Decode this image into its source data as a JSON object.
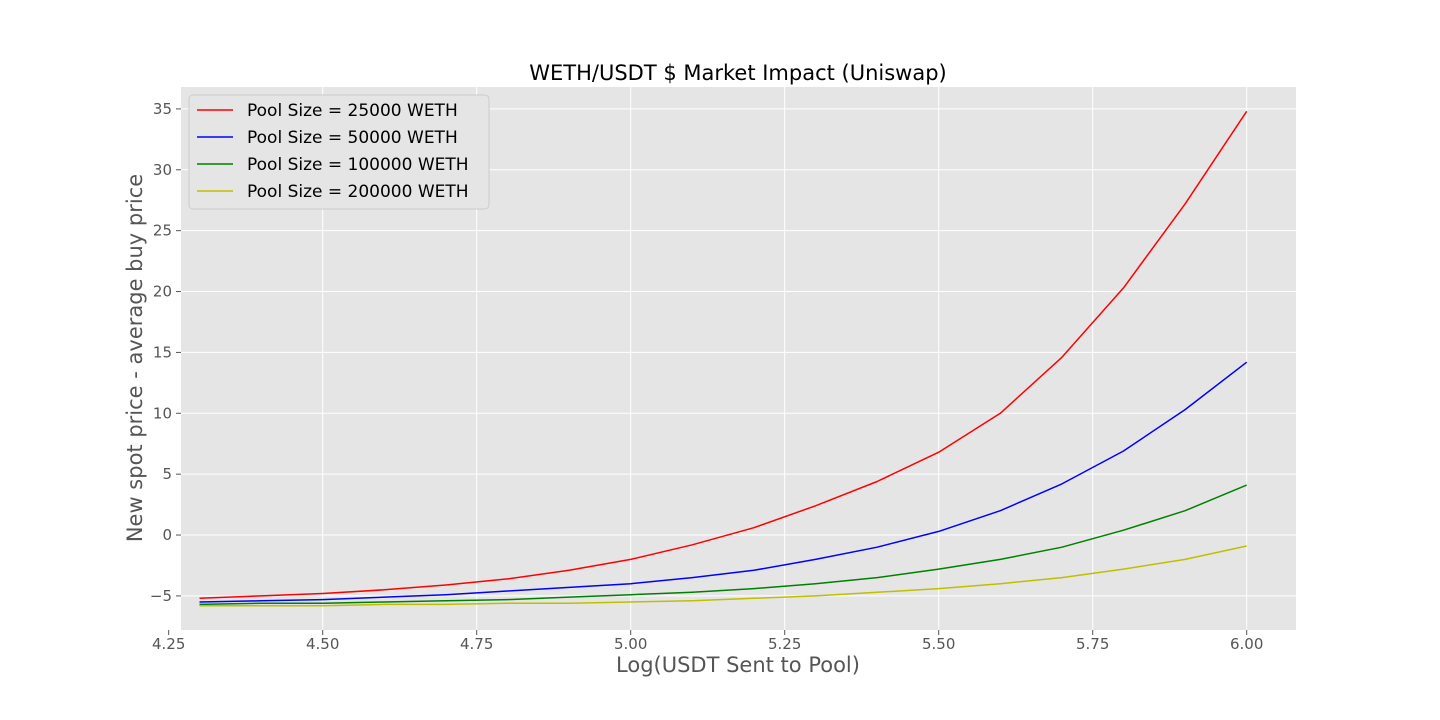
{
  "chart_data": {
    "type": "line",
    "title": "WETH/USDT $ Market Impact (Uniswap)",
    "xlabel": "Log(USDT Sent to Pool)",
    "ylabel": "New spot price - average buy price",
    "xlim": [
      4.27,
      6.08
    ],
    "ylim": [
      -7.8,
      36.8
    ],
    "xticks": [
      4.25,
      4.5,
      4.75,
      5.0,
      5.25,
      5.5,
      5.75,
      6.0
    ],
    "xtick_labels": [
      "4.25",
      "4.50",
      "4.75",
      "5.00",
      "5.25",
      "5.50",
      "5.75",
      "6.00"
    ],
    "yticks": [
      -5,
      0,
      5,
      10,
      15,
      20,
      25,
      30,
      35
    ],
    "ytick_labels": [
      "−5",
      "0",
      "5",
      "10",
      "15",
      "20",
      "25",
      "30",
      "35"
    ],
    "grid": true,
    "legend_position": "top-left",
    "x": [
      4.3,
      4.4,
      4.5,
      4.6,
      4.7,
      4.8,
      4.9,
      5.0,
      5.1,
      5.2,
      5.3,
      5.4,
      5.5,
      5.6,
      5.7,
      5.8,
      5.9,
      6.0
    ],
    "series": [
      {
        "name": "Pool Size = 25000 WETH",
        "color": "#ff0000",
        "values": [
          -5.2,
          -5.0,
          -4.8,
          -4.5,
          -4.1,
          -3.6,
          -2.9,
          -2.0,
          -0.8,
          0.6,
          2.4,
          4.4,
          6.8,
          10.0,
          14.6,
          20.3,
          27.2,
          34.8
        ]
      },
      {
        "name": "Pool Size = 50000 WETH",
        "color": "#0000ff",
        "values": [
          -5.5,
          -5.4,
          -5.3,
          -5.1,
          -4.9,
          -4.6,
          -4.3,
          -4.0,
          -3.5,
          -2.9,
          -2.0,
          -1.0,
          0.3,
          2.0,
          4.2,
          6.9,
          10.3,
          14.2
        ]
      },
      {
        "name": "Pool Size = 100000 WETH",
        "color": "#008000",
        "values": [
          -5.7,
          -5.6,
          -5.6,
          -5.5,
          -5.4,
          -5.3,
          -5.1,
          -4.9,
          -4.7,
          -4.4,
          -4.0,
          -3.5,
          -2.8,
          -2.0,
          -1.0,
          0.4,
          2.0,
          4.1
        ]
      },
      {
        "name": "Pool Size = 200000 WETH",
        "color": "#bfbf00",
        "values": [
          -5.8,
          -5.8,
          -5.8,
          -5.7,
          -5.7,
          -5.6,
          -5.6,
          -5.5,
          -5.4,
          -5.2,
          -5.0,
          -4.7,
          -4.4,
          -4.0,
          -3.5,
          -2.8,
          -2.0,
          -0.9
        ]
      }
    ]
  }
}
